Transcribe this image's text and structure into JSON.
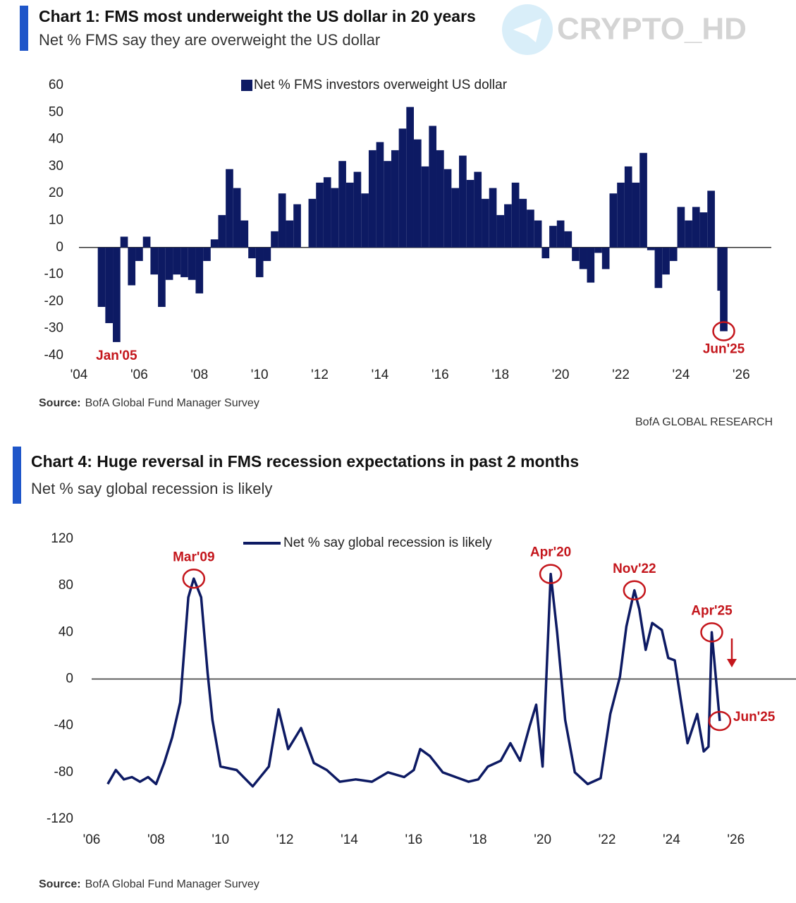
{
  "watermark": "CRYPTO_HD",
  "footer": "BofA GLOBAL RESEARCH",
  "chart_data": [
    {
      "type": "bar",
      "title": "Chart 1: FMS most underweight the US dollar in 20 years",
      "subtitle": "Net % FMS say they are overweight the US dollar",
      "source_label": "Source:",
      "source": "BofA Global Fund Manager Survey",
      "series": [
        {
          "name": "Net % FMS investors overweight US dollar",
          "color": "#0d1a63",
          "x": [
            2004.75,
            2005.0,
            2005.25,
            2005.5,
            2005.75,
            2006.0,
            2006.25,
            2006.5,
            2006.75,
            2007.0,
            2007.25,
            2007.5,
            2007.75,
            2008.0,
            2008.25,
            2008.5,
            2008.75,
            2009.0,
            2009.25,
            2009.5,
            2009.75,
            2010.0,
            2010.25,
            2010.5,
            2010.75,
            2011.0,
            2011.25,
            2011.5,
            2011.75,
            2012.0,
            2012.25,
            2012.5,
            2012.75,
            2013.0,
            2013.25,
            2013.5,
            2013.75,
            2014.0,
            2014.25,
            2014.5,
            2014.75,
            2015.0,
            2015.25,
            2015.5,
            2015.75,
            2016.0,
            2016.25,
            2016.5,
            2016.75,
            2017.0,
            2017.25,
            2017.5,
            2017.75,
            2018.0,
            2018.25,
            2018.5,
            2018.75,
            2019.0,
            2019.25,
            2019.5,
            2019.75,
            2020.0,
            2020.25,
            2020.5,
            2020.75,
            2021.0,
            2021.25,
            2021.5,
            2021.75,
            2022.0,
            2022.25,
            2022.5,
            2022.75,
            2023.0,
            2023.25,
            2023.5,
            2023.75,
            2024.0,
            2024.25,
            2024.5,
            2024.75,
            2025.0,
            2025.25,
            2025.33,
            2025.42
          ],
          "values": [
            -22,
            -28,
            -35,
            4,
            -14,
            -5,
            4,
            -10,
            -22,
            -12,
            -10,
            -11,
            -12,
            -17,
            -5,
            3,
            12,
            29,
            22,
            10,
            -4,
            -11,
            -5,
            6,
            20,
            10,
            16,
            0,
            18,
            24,
            26,
            22,
            32,
            24,
            28,
            20,
            36,
            39,
            32,
            36,
            44,
            52,
            40,
            30,
            45,
            36,
            29,
            22,
            34,
            25,
            28,
            18,
            22,
            12,
            16,
            24,
            18,
            14,
            10,
            -4,
            8,
            10,
            6,
            -5,
            -8,
            -13,
            -2,
            -8,
            20,
            24,
            30,
            24,
            35,
            -1,
            -15,
            -10,
            -5,
            15,
            10,
            15,
            13,
            21,
            0,
            -16,
            -31
          ]
        }
      ],
      "xlim": [
        2004,
        2027
      ],
      "xticks": [
        {
          "value": 2004,
          "label": "'04"
        },
        {
          "value": 2006,
          "label": "'06"
        },
        {
          "value": 2008,
          "label": "'08"
        },
        {
          "value": 2010,
          "label": "'10"
        },
        {
          "value": 2012,
          "label": "'12"
        },
        {
          "value": 2014,
          "label": "'14"
        },
        {
          "value": 2016,
          "label": "'16"
        },
        {
          "value": 2018,
          "label": "'18"
        },
        {
          "value": 2020,
          "label": "'20"
        },
        {
          "value": 2022,
          "label": "'22"
        },
        {
          "value": 2024,
          "label": "'24"
        },
        {
          "value": 2026,
          "label": "'26"
        }
      ],
      "ylim": [
        -40,
        60
      ],
      "yticks": [
        60,
        50,
        40,
        30,
        20,
        10,
        0,
        -10,
        -20,
        -30,
        -40
      ],
      "annotations": [
        {
          "text": "Jan'05",
          "x": 2005.25,
          "position": "below",
          "circled": false
        },
        {
          "text": "Jun'25",
          "x": 2025.42,
          "position": "below",
          "circled": true
        }
      ]
    },
    {
      "type": "line",
      "title": "Chart 4: Huge reversal in FMS recession expectations in past 2 months",
      "subtitle": "Net % say global recession is likely",
      "source_label": "Source:",
      "source": "BofA Global Fund Manager Survey",
      "series": [
        {
          "name": "Net % say global recession is likely",
          "color": "#0d1a63",
          "x": [
            2006.5,
            2006.75,
            2007.0,
            2007.25,
            2007.5,
            2007.75,
            2008.0,
            2008.25,
            2008.5,
            2008.75,
            2009.0,
            2009.17,
            2009.4,
            2009.6,
            2009.75,
            2010.0,
            2010.5,
            2011.0,
            2011.5,
            2011.8,
            2012.1,
            2012.5,
            2012.9,
            2013.3,
            2013.7,
            2014.2,
            2014.7,
            2015.2,
            2015.7,
            2016.0,
            2016.2,
            2016.5,
            2016.9,
            2017.3,
            2017.7,
            2018.0,
            2018.3,
            2018.7,
            2019.0,
            2019.3,
            2019.6,
            2019.8,
            2020.0,
            2020.25,
            2020.45,
            2020.7,
            2021.0,
            2021.4,
            2021.8,
            2022.1,
            2022.4,
            2022.6,
            2022.85,
            2023.0,
            2023.2,
            2023.4,
            2023.7,
            2023.9,
            2024.1,
            2024.3,
            2024.5,
            2024.8,
            2025.0,
            2025.15,
            2025.25,
            2025.5
          ],
          "values": [
            -90,
            -78,
            -86,
            -84,
            -88,
            -84,
            -90,
            -72,
            -50,
            -20,
            70,
            86,
            70,
            5,
            -35,
            -75,
            -78,
            -92,
            -75,
            -26,
            -60,
            -42,
            -72,
            -78,
            -88,
            -86,
            -88,
            -80,
            -84,
            -78,
            -60,
            -66,
            -80,
            -84,
            -88,
            -86,
            -75,
            -70,
            -55,
            -70,
            -40,
            -22,
            -75,
            90,
            40,
            -35,
            -80,
            -90,
            -85,
            -30,
            2,
            45,
            76,
            60,
            25,
            48,
            42,
            18,
            16,
            -20,
            -55,
            -30,
            -62,
            -58,
            40,
            -36
          ]
        }
      ],
      "xlim": [
        2006,
        2027.8
      ],
      "xticks": [
        {
          "value": 2006,
          "label": "'06"
        },
        {
          "value": 2008,
          "label": "'08"
        },
        {
          "value": 2010,
          "label": "'10"
        },
        {
          "value": 2012,
          "label": "'12"
        },
        {
          "value": 2014,
          "label": "'14"
        },
        {
          "value": 2016,
          "label": "'16"
        },
        {
          "value": 2018,
          "label": "'18"
        },
        {
          "value": 2020,
          "label": "'20"
        },
        {
          "value": 2022,
          "label": "'22"
        },
        {
          "value": 2024,
          "label": "'24"
        },
        {
          "value": 2026,
          "label": "'26"
        }
      ],
      "ylim": [
        -120,
        120
      ],
      "yticks": [
        120,
        80,
        40,
        0,
        -40,
        -80,
        -120
      ],
      "annotations": [
        {
          "text": "Mar'09",
          "x": 2009.17,
          "position": "above",
          "circled": true
        },
        {
          "text": "Apr'20",
          "x": 2020.25,
          "position": "above",
          "circled": true
        },
        {
          "text": "Nov'22",
          "x": 2022.85,
          "position": "above",
          "circled": true
        },
        {
          "text": "Apr'25",
          "x": 2025.25,
          "position": "above",
          "circled": true
        },
        {
          "text": "Jun'25",
          "x": 2025.5,
          "position": "right",
          "circled": true
        }
      ]
    }
  ]
}
